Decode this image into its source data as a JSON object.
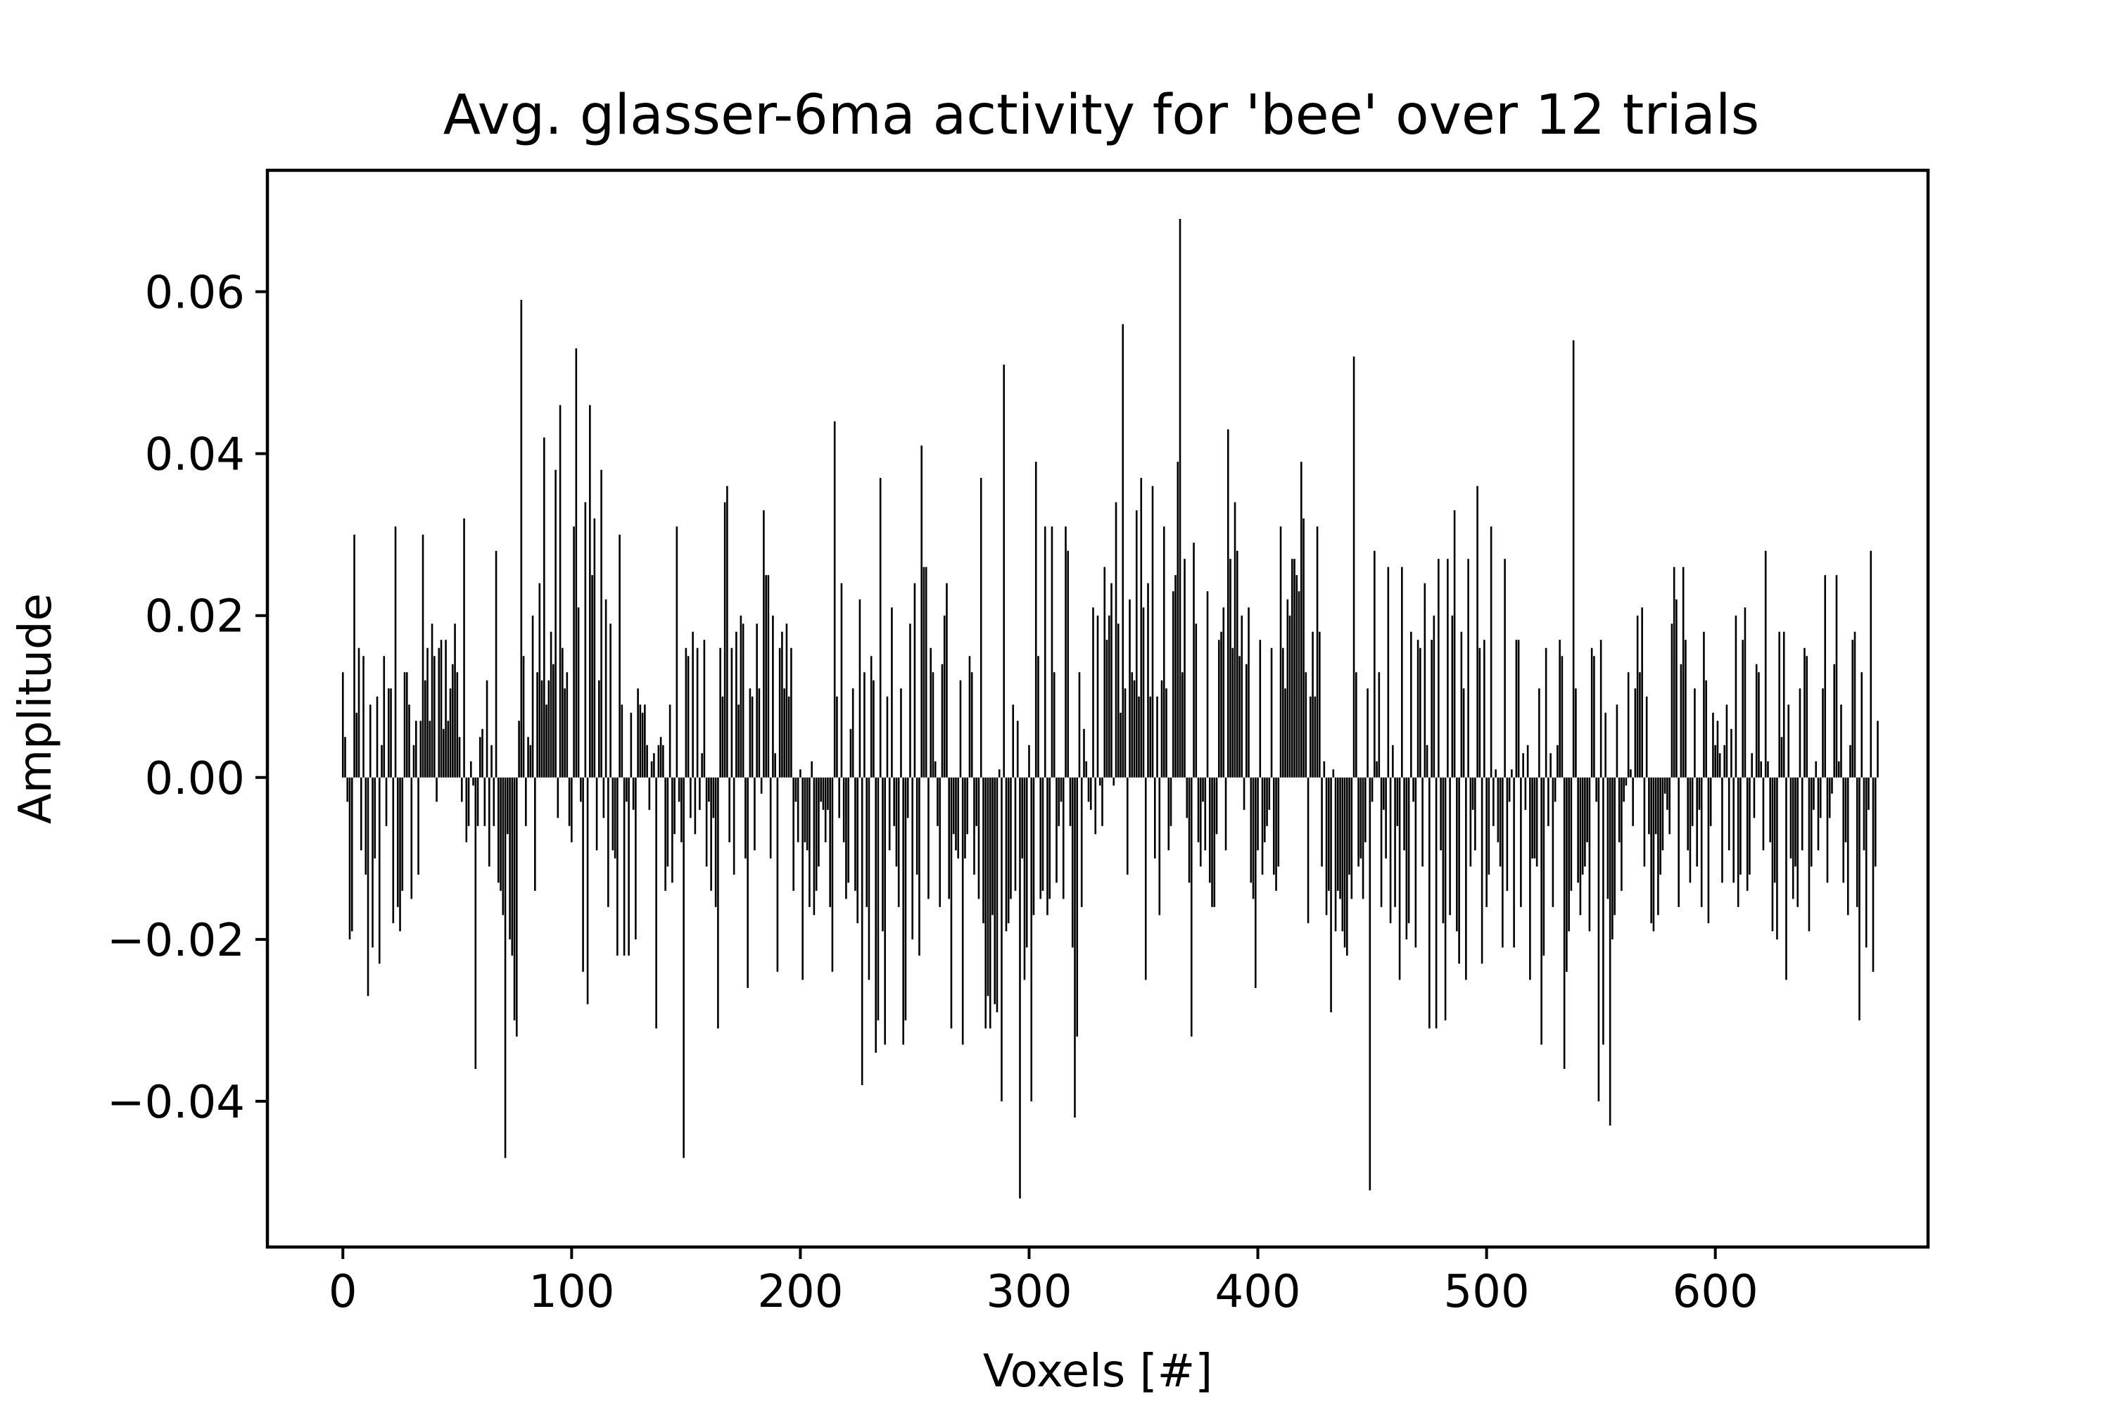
{
  "chart_data": {
    "type": "bar",
    "title": "Avg. glasser-6ma activity for 'bee' over 12 trials",
    "xlabel": "Voxels [#]",
    "ylabel": "Amplitude",
    "xlim": [
      -33,
      693
    ],
    "ylim": [
      -0.058,
      0.075
    ],
    "xticks": [
      0,
      100,
      200,
      300,
      400,
      500,
      600
    ],
    "xtick_labels": [
      "0",
      "100",
      "200",
      "300",
      "400",
      "500",
      "600"
    ],
    "yticks": [
      -0.04,
      -0.02,
      0.0,
      0.02,
      0.04,
      0.06
    ],
    "ytick_labels": [
      "−0.04",
      "−0.02",
      "0.00",
      "0.02",
      "0.04",
      "0.06"
    ],
    "grid": false,
    "legend": "none",
    "bar_color": "#000000",
    "n_voxels": 663,
    "x_start": 0,
    "values": [
      0.013,
      0.005,
      -0.003,
      -0.02,
      -0.019,
      0.03,
      0.008,
      0.016,
      -0.009,
      0.015,
      -0.012,
      -0.027,
      0.009,
      -0.021,
      -0.01,
      0.01,
      -0.023,
      0.004,
      0.015,
      -0.006,
      0.011,
      0.011,
      -0.018,
      0.031,
      -0.016,
      -0.019,
      -0.014,
      0.013,
      0.013,
      0.009,
      -0.015,
      0.004,
      0.007,
      -0.012,
      0.007,
      0.03,
      0.012,
      0.016,
      0.007,
      0.019,
      0.015,
      -0.003,
      0.016,
      0.017,
      0.006,
      0.017,
      0.007,
      0.011,
      0.014,
      0.019,
      0.013,
      0.005,
      -0.003,
      0.032,
      -0.008,
      -0.006,
      0.002,
      -0.001,
      -0.036,
      -0.006,
      0.005,
      0.006,
      -0.006,
      0.012,
      -0.011,
      0.004,
      -0.006,
      0.028,
      -0.013,
      -0.014,
      -0.017,
      -0.047,
      -0.007,
      -0.02,
      -0.022,
      -0.03,
      -0.032,
      0.007,
      0.059,
      0.015,
      -0.006,
      0.005,
      0.004,
      0.02,
      -0.014,
      0.013,
      0.024,
      0.012,
      0.042,
      0.009,
      0.012,
      0.018,
      0.014,
      0.038,
      -0.005,
      0.046,
      0.016,
      0.011,
      0.013,
      -0.006,
      -0.008,
      0.031,
      0.053,
      0.021,
      -0.003,
      -0.024,
      0.034,
      -0.028,
      0.046,
      0.025,
      0.032,
      -0.009,
      0.012,
      0.038,
      -0.005,
      0.022,
      -0.016,
      0.019,
      -0.009,
      -0.01,
      -0.022,
      0.03,
      0.009,
      -0.022,
      -0.003,
      -0.022,
      0.008,
      -0.004,
      -0.02,
      0.011,
      0.009,
      0.008,
      0.009,
      0.004,
      -0.004,
      0.002,
      0.003,
      -0.031,
      0.004,
      0.005,
      0.004,
      -0.014,
      -0.011,
      0.009,
      -0.013,
      -0.007,
      0.031,
      -0.003,
      -0.008,
      -0.047,
      0.016,
      0.015,
      -0.005,
      0.018,
      -0.007,
      0.016,
      -0.004,
      0.003,
      0.017,
      -0.011,
      -0.003,
      -0.014,
      -0.005,
      -0.016,
      -0.031,
      0.016,
      0.01,
      0.034,
      0.036,
      -0.008,
      0.016,
      -0.012,
      0.018,
      0.009,
      0.02,
      0.019,
      -0.01,
      -0.026,
      0.011,
      0.01,
      -0.009,
      0.019,
      0.011,
      -0.002,
      0.033,
      0.025,
      0.025,
      -0.01,
      0.02,
      0.003,
      -0.024,
      0.016,
      0.018,
      0.011,
      0.019,
      0.01,
      0.016,
      -0.014,
      -0.003,
      -0.008,
      0.001,
      -0.025,
      -0.008,
      -0.009,
      -0.016,
      0.002,
      -0.017,
      -0.014,
      -0.011,
      -0.003,
      -0.004,
      -0.008,
      -0.004,
      -0.016,
      -0.024,
      0.044,
      0.01,
      -0.005,
      0.024,
      -0.008,
      -0.015,
      -0.013,
      0.006,
      0.011,
      -0.014,
      -0.018,
      0.022,
      -0.038,
      0.013,
      -0.016,
      -0.025,
      0.015,
      0.012,
      -0.034,
      -0.03,
      0.037,
      -0.019,
      -0.033,
      0.01,
      -0.009,
      0.021,
      -0.006,
      -0.011,
      -0.016,
      0.011,
      -0.033,
      -0.03,
      -0.005,
      0.019,
      -0.02,
      0.024,
      -0.012,
      -0.022,
      0.041,
      0.026,
      0.026,
      -0.015,
      0.016,
      0.013,
      0.002,
      -0.006,
      -0.016,
      0.014,
      0.02,
      0.024,
      -0.015,
      -0.031,
      -0.007,
      -0.009,
      -0.01,
      0.012,
      -0.033,
      -0.01,
      -0.007,
      0.015,
      0.013,
      -0.012,
      -0.006,
      -0.015,
      0.037,
      -0.018,
      -0.031,
      -0.027,
      -0.031,
      -0.017,
      -0.028,
      -0.029,
      0.001,
      -0.04,
      0.051,
      -0.019,
      -0.018,
      -0.015,
      0.009,
      -0.014,
      0.007,
      -0.052,
      -0.01,
      -0.025,
      -0.021,
      0.004,
      -0.04,
      -0.017,
      0.039,
      0.015,
      -0.015,
      -0.014,
      0.031,
      -0.017,
      -0.015,
      0.031,
      0.013,
      -0.013,
      -0.006,
      -0.003,
      -0.015,
      0.031,
      0.028,
      -0.006,
      -0.021,
      -0.042,
      -0.032,
      0.013,
      -0.016,
      0.006,
      0.002,
      -0.003,
      -0.004,
      0.021,
      -0.007,
      0.02,
      -0.001,
      -0.006,
      0.026,
      0.017,
      0.02,
      0.024,
      -0.001,
      0.034,
      0.019,
      0.008,
      0.056,
      0.011,
      -0.012,
      0.022,
      0.013,
      0.012,
      0.033,
      0.01,
      0.037,
      0.021,
      -0.025,
      0.024,
      0.01,
      0.036,
      -0.01,
      0.01,
      -0.017,
      0.012,
      0.031,
      0.011,
      -0.009,
      -0.006,
      0.023,
      0.025,
      0.039,
      0.069,
      0.013,
      0.027,
      -0.005,
      -0.013,
      -0.032,
      0.029,
      0.019,
      -0.008,
      -0.011,
      -0.003,
      -0.009,
      0.023,
      -0.013,
      -0.016,
      -0.016,
      -0.007,
      0.017,
      0.018,
      0.021,
      -0.009,
      0.043,
      0.027,
      0.016,
      0.034,
      0.028,
      0.015,
      0.02,
      -0.004,
      0.014,
      0.021,
      -0.013,
      -0.015,
      -0.026,
      -0.009,
      0.017,
      -0.012,
      -0.008,
      -0.006,
      -0.004,
      0.016,
      -0.012,
      -0.014,
      -0.011,
      0.031,
      0.016,
      0.011,
      0.022,
      0.02,
      0.027,
      0.027,
      0.025,
      0.023,
      0.039,
      0.032,
      0.013,
      -0.018,
      0.01,
      0.018,
      0.01,
      0.031,
      0.018,
      -0.011,
      0.002,
      -0.017,
      -0.014,
      -0.029,
      0.001,
      -0.019,
      -0.014,
      -0.015,
      -0.019,
      -0.021,
      -0.022,
      -0.012,
      -0.015,
      0.052,
      0.013,
      -0.011,
      -0.01,
      -0.015,
      -0.008,
      0.011,
      -0.051,
      -0.003,
      0.028,
      0.002,
      0.013,
      -0.016,
      -0.004,
      -0.01,
      0.026,
      -0.018,
      0.004,
      -0.016,
      -0.006,
      -0.025,
      0.026,
      -0.009,
      -0.02,
      -0.018,
      0.018,
      -0.003,
      -0.021,
      0.017,
      0.016,
      -0.011,
      0.024,
      0.004,
      -0.031,
      0.017,
      0.02,
      -0.031,
      0.027,
      -0.009,
      -0.018,
      -0.03,
      0.027,
      -0.017,
      0.02,
      0.033,
      -0.019,
      -0.023,
      0.018,
      0.011,
      -0.025,
      0.027,
      -0.011,
      -0.004,
      -0.009,
      0.036,
      0.016,
      -0.023,
      0.017,
      -0.016,
      -0.012,
      0.031,
      -0.006,
      0.001,
      -0.008,
      -0.011,
      -0.021,
      0.027,
      -0.014,
      -0.003,
      0.001,
      -0.021,
      0.017,
      0.017,
      -0.016,
      0.003,
      -0.004,
      0.004,
      -0.025,
      -0.01,
      -0.01,
      -0.011,
      0.011,
      -0.033,
      -0.022,
      0.016,
      -0.006,
      0.003,
      -0.016,
      -0.003,
      0.004,
      0.017,
      0.015,
      -0.036,
      -0.024,
      -0.019,
      -0.014,
      0.054,
      0.011,
      -0.013,
      -0.017,
      -0.012,
      -0.011,
      -0.008,
      -0.019,
      0.016,
      0.015,
      -0.003,
      -0.04,
      0.017,
      -0.033,
      0.008,
      -0.015,
      -0.043,
      -0.02,
      -0.017,
      0.009,
      -0.008,
      -0.014,
      -0.003,
      -0.001,
      0.013,
      0.001,
      -0.006,
      0.011,
      0.02,
      0.013,
      0.021,
      -0.011,
      0.01,
      -0.007,
      -0.018,
      -0.019,
      -0.007,
      -0.017,
      -0.012,
      -0.009,
      -0.002,
      -0.004,
      -0.007,
      0.019,
      0.026,
      0.022,
      -0.016,
      0.014,
      0.026,
      0.017,
      -0.009,
      -0.013,
      -0.006,
      0.011,
      -0.011,
      -0.004,
      -0.016,
      0.018,
      0.012,
      -0.018,
      -0.006,
      0.008,
      0.004,
      0.007,
      0.003,
      -0.013,
      0.004,
      0.009,
      -0.009,
      0.006,
      -0.013,
      0.02,
      -0.016,
      -0.012,
      0.017,
      0.021,
      -0.014,
      -0.012,
      0.003,
      -0.005,
      0.014,
      0.013,
      0.002,
      -0.009,
      0.028,
      0.002,
      -0.008,
      -0.019,
      -0.013,
      -0.02,
      0.018,
      0.005,
      0.018,
      -0.025,
      0.009,
      -0.01,
      -0.015,
      -0.011,
      -0.016,
      0.011,
      -0.009,
      0.016,
      0.015,
      -0.019,
      -0.011,
      -0.004,
      0.002,
      -0.009,
      -0.005,
      0.011,
      0.025,
      -0.013,
      -0.005,
      -0.002,
      0.014,
      0.025,
      0.002,
      0.009,
      -0.013,
      -0.008,
      -0.017,
      0.004,
      0.017,
      0.018,
      -0.016,
      -0.03,
      0.013,
      -0.009,
      -0.021,
      -0.004,
      0.028,
      -0.024,
      -0.011,
      0.007
    ]
  }
}
